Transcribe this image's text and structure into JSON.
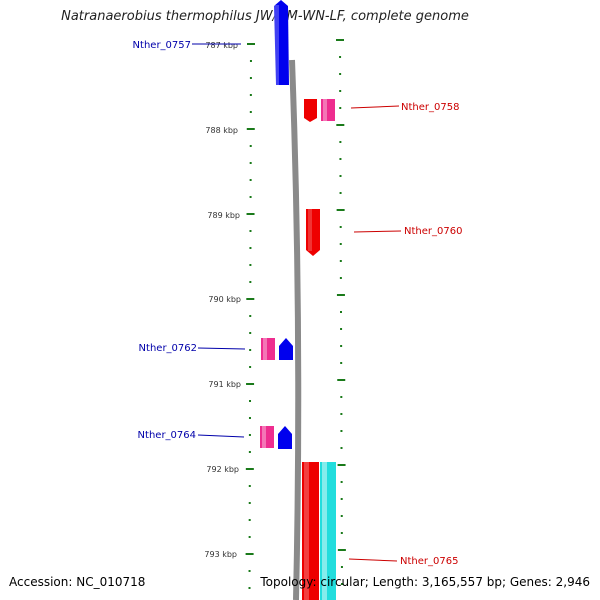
{
  "title": "Natranaerobius thermophilus JW/NM-WN-LF, complete genome",
  "footer": {
    "accession": "Accession: NC_010718",
    "genome_info": "Topology: circular; Length: 3,165,557 bp; Genes: 2,946"
  },
  "colors": {
    "forward_strand": "#0000ee",
    "reverse_strand": "#ee0000",
    "pink_feature": "#ee2d8f",
    "cyan_feature": "#22dddd",
    "backbone": "#8a8a8a",
    "tick": "#1a7a1a",
    "label_blue": "#0000aa",
    "label_red": "#cc0000"
  },
  "scale": {
    "unit": "kbp",
    "ticks": [
      {
        "kbp": 787,
        "label": "787 kbp"
      },
      {
        "kbp": 788,
        "label": "788 kbp"
      },
      {
        "kbp": 789,
        "label": "789 kbp"
      },
      {
        "kbp": 790,
        "label": "790 kbp"
      },
      {
        "kbp": 791,
        "label": "791 kbp"
      },
      {
        "kbp": 792,
        "label": "792 kbp"
      },
      {
        "kbp": 793,
        "label": "793 kbp"
      }
    ]
  },
  "gene_labels": [
    {
      "name": "Nther_0757",
      "side": "left",
      "color_key": "label_blue"
    },
    {
      "name": "Nther_0758",
      "side": "right",
      "color_key": "label_red"
    },
    {
      "name": "Nther_0760",
      "side": "right",
      "color_key": "label_red"
    },
    {
      "name": "Nther_0762",
      "side": "left",
      "color_key": "label_blue"
    },
    {
      "name": "Nther_0764",
      "side": "left",
      "color_key": "label_blue"
    },
    {
      "name": "Nther_0765",
      "side": "right",
      "color_key": "label_red"
    }
  ]
}
